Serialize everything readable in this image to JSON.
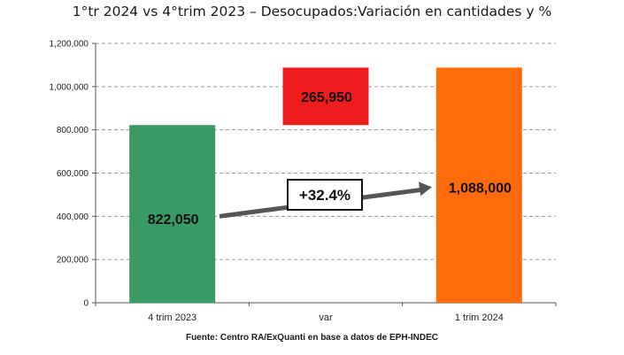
{
  "chart_data": {
    "type": "bar",
    "title": "1°tr 2024 vs 4°trim 2023 – Desocupados:Variación en cantidades y %",
    "categories": [
      "4 trim 2023",
      "var",
      "1 trim 2024"
    ],
    "series": [
      {
        "values": [
          822050,
          265950,
          1088000
        ],
        "bases": [
          0,
          822050,
          0
        ],
        "colors": [
          "#3a9a63",
          "#ee1c1c",
          "#ff6a0a"
        ],
        "labels": [
          "822,050",
          "265,950",
          "1,088,000"
        ]
      }
    ],
    "ylim": [
      0,
      1200000
    ],
    "yticks": [
      0,
      200000,
      400000,
      600000,
      800000,
      1000000,
      1200000
    ],
    "ytick_labels": [
      "0",
      "200,000",
      "400,000",
      "600,000",
      "800,000",
      "1,000,000",
      "1,200,000"
    ],
    "grid": true,
    "annotation": {
      "text": "+32.4%",
      "arrow_from": "4 trim 2023",
      "arrow_to": "1 trim 2024"
    },
    "source": "Fuente: Centro RA/ExQuanti en base a datos de EPH-INDEC"
  }
}
